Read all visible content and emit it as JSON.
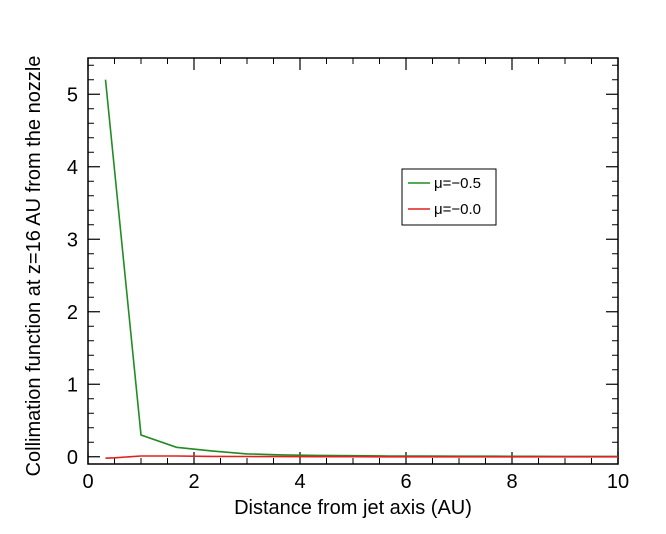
{
  "chart_data": {
    "type": "line",
    "title": "",
    "xlabel": "Distance from jet axis (AU)",
    "ylabel": "Collimation function at z=16 AU from the nozzle",
    "xlim": [
      0,
      10
    ],
    "ylim": [
      -0.1,
      5.5
    ],
    "xticks": [
      0,
      2,
      4,
      6,
      8,
      10
    ],
    "xtick_labels": [
      "0",
      "2",
      "4",
      "6",
      "8",
      "10"
    ],
    "yticks": [
      0,
      1,
      2,
      3,
      4,
      5
    ],
    "ytick_labels": [
      "0",
      "1",
      "2",
      "3",
      "4",
      "5"
    ],
    "grid": false,
    "legend_position": "upper-right-center",
    "series": [
      {
        "name": "μ=−0.5",
        "color": "#228B22",
        "x": [
          0.33,
          1.0,
          1.67,
          2.33,
          3.0,
          3.67,
          4.33,
          5.0,
          5.67,
          6.33,
          7.0,
          7.67,
          8.33,
          9.0,
          9.67,
          10.0
        ],
        "y": [
          5.2,
          0.3,
          0.13,
          0.08,
          0.04,
          0.025,
          0.018,
          0.014,
          0.011,
          0.009,
          0.008,
          0.007,
          0.006,
          0.005,
          0.005,
          0.005
        ]
      },
      {
        "name": "μ=−0.0",
        "color": "#E02020",
        "x": [
          0.33,
          0.5,
          1.0,
          1.67,
          2.33,
          3.0,
          3.67,
          4.33,
          5.0,
          5.67,
          6.33,
          7.0,
          7.67,
          8.33,
          9.0,
          9.67,
          10.0
        ],
        "y": [
          -0.02,
          -0.015,
          0.01,
          0.01,
          0.005,
          0.003,
          0.002,
          0.001,
          0.001,
          0.0,
          0.0,
          0.0,
          0.0,
          0.0,
          0.0,
          0.0,
          0.0
        ]
      }
    ]
  }
}
